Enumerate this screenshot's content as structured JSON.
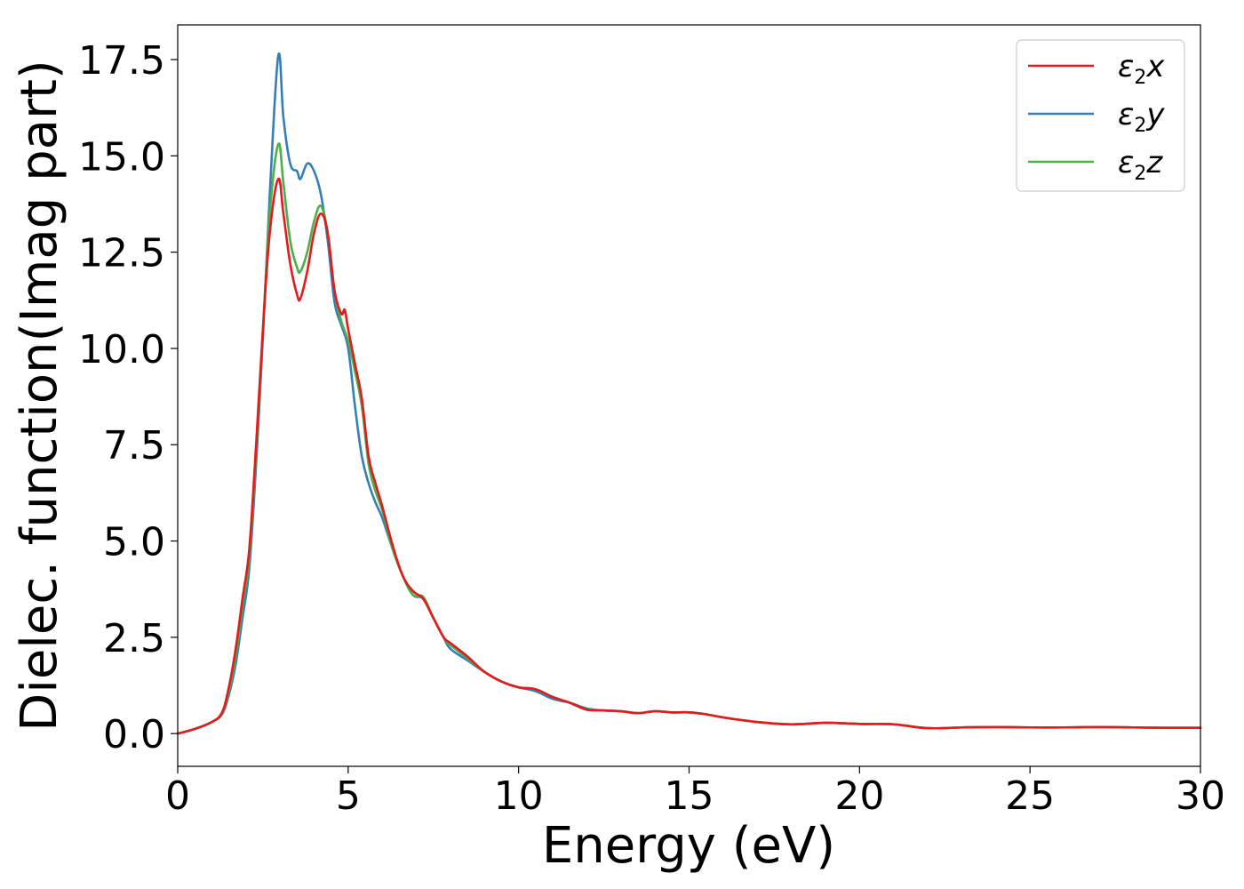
{
  "chart_data": {
    "type": "line",
    "xlabel": "Energy (eV)",
    "ylabel": "Dielec. function(Imag part)",
    "xlim": [
      0,
      30
    ],
    "ylim": [
      -0.85,
      18.4
    ],
    "xticks": [
      0,
      5,
      10,
      15,
      20,
      25,
      30
    ],
    "xtick_labels": [
      "0",
      "5",
      "10",
      "15",
      "20",
      "25",
      "30"
    ],
    "yticks": [
      0.0,
      2.5,
      5.0,
      7.5,
      10.0,
      12.5,
      15.0,
      17.5
    ],
    "ytick_labels": [
      "0.0",
      "2.5",
      "5.0",
      "7.5",
      "10.0",
      "12.5",
      "15.0",
      "17.5"
    ],
    "grid": false,
    "legend_position": "top-right",
    "series": [
      {
        "name": "ε2x",
        "legend_base": "ε",
        "legend_sub": "2",
        "legend_suffix": "x",
        "color": "#e41a1c",
        "x": [
          0,
          0.5,
          1.0,
          1.3,
          1.5,
          1.7,
          1.9,
          2.1,
          2.3,
          2.5,
          2.7,
          2.95,
          3.1,
          3.3,
          3.5,
          3.6,
          3.8,
          4.0,
          4.2,
          4.4,
          4.6,
          4.8,
          4.9,
          5.0,
          5.2,
          5.4,
          5.6,
          5.8,
          6.0,
          6.3,
          6.6,
          6.9,
          7.2,
          7.5,
          7.8,
          8.0,
          8.5,
          9.0,
          9.5,
          10.0,
          10.5,
          11.0,
          11.5,
          12.0,
          12.5,
          13.0,
          13.5,
          14.0,
          14.5,
          15.0,
          15.5,
          16.0,
          17.0,
          18.0,
          19.0,
          20.0,
          21.0,
          22.0,
          23.0,
          24.0,
          25.0,
          26.0,
          27.0,
          28.0,
          29.0,
          30.0
        ],
        "y": [
          0.0,
          0.12,
          0.3,
          0.55,
          1.2,
          2.2,
          3.5,
          4.8,
          7.5,
          10.5,
          13.0,
          14.4,
          13.5,
          12.2,
          11.4,
          11.3,
          12.0,
          13.0,
          13.5,
          13.0,
          11.5,
          10.9,
          11.0,
          10.5,
          9.6,
          8.7,
          7.2,
          6.5,
          5.9,
          4.9,
          4.1,
          3.7,
          3.5,
          3.0,
          2.5,
          2.35,
          2.0,
          1.6,
          1.35,
          1.2,
          1.15,
          0.95,
          0.8,
          0.62,
          0.6,
          0.58,
          0.53,
          0.58,
          0.55,
          0.55,
          0.5,
          0.42,
          0.3,
          0.24,
          0.28,
          0.25,
          0.24,
          0.14,
          0.16,
          0.17,
          0.16,
          0.16,
          0.17,
          0.16,
          0.15,
          0.15
        ]
      },
      {
        "name": "ε2y",
        "legend_base": "ε",
        "legend_sub": "2",
        "legend_suffix": "y",
        "color": "#377eb8",
        "x": [
          0,
          0.5,
          1.0,
          1.3,
          1.5,
          1.7,
          1.9,
          2.1,
          2.3,
          2.5,
          2.7,
          2.95,
          3.1,
          3.3,
          3.5,
          3.6,
          3.8,
          4.0,
          4.2,
          4.4,
          4.6,
          4.8,
          5.0,
          5.2,
          5.4,
          5.6,
          5.8,
          6.0,
          6.3,
          6.6,
          6.9,
          7.2,
          7.5,
          7.8,
          8.0,
          8.5,
          9.0,
          9.5,
          10.0,
          10.5,
          11.0,
          11.5,
          12.0,
          12.5,
          13.0,
          13.5,
          14.0,
          14.5,
          15.0,
          15.5,
          16.0,
          17.0,
          18.0,
          19.0,
          20.0,
          21.0,
          22.0,
          23.0,
          24.0,
          25.0,
          26.0,
          27.0,
          28.0,
          29.0,
          30.0
        ],
        "y": [
          0.0,
          0.12,
          0.3,
          0.5,
          1.0,
          1.8,
          3.0,
          4.3,
          7.0,
          10.3,
          14.0,
          17.6,
          16.0,
          14.8,
          14.6,
          14.4,
          14.8,
          14.6,
          14.0,
          12.8,
          11.2,
          10.6,
          10.0,
          8.5,
          7.2,
          6.5,
          6.0,
          5.6,
          4.8,
          4.1,
          3.6,
          3.5,
          3.0,
          2.5,
          2.2,
          1.9,
          1.6,
          1.35,
          1.2,
          1.1,
          0.9,
          0.8,
          0.65,
          0.6,
          0.58,
          0.53,
          0.58,
          0.55,
          0.55,
          0.5,
          0.42,
          0.3,
          0.24,
          0.28,
          0.25,
          0.24,
          0.14,
          0.16,
          0.17,
          0.16,
          0.16,
          0.17,
          0.16,
          0.15,
          0.15
        ]
      },
      {
        "name": "ε2z",
        "legend_base": "ε",
        "legend_sub": "2",
        "legend_suffix": "z",
        "color": "#4daf4a",
        "x": [
          0,
          0.5,
          1.0,
          1.3,
          1.5,
          1.7,
          1.9,
          2.1,
          2.3,
          2.5,
          2.7,
          2.95,
          3.1,
          3.3,
          3.5,
          3.6,
          3.8,
          4.0,
          4.2,
          4.4,
          4.6,
          4.8,
          5.0,
          5.2,
          5.4,
          5.6,
          5.8,
          6.0,
          6.3,
          6.6,
          6.9,
          7.2,
          7.5,
          7.8,
          8.0,
          8.5,
          9.0,
          9.5,
          10.0,
          10.5,
          11.0,
          11.5,
          12.0,
          12.5,
          13.0,
          13.5,
          14.0,
          14.5,
          15.0,
          15.5,
          16.0,
          17.0,
          18.0,
          19.0,
          20.0,
          21.0,
          22.0,
          23.0,
          24.0,
          25.0,
          26.0,
          27.0,
          28.0,
          29.0,
          30.0
        ],
        "y": [
          0.0,
          0.12,
          0.3,
          0.52,
          1.1,
          2.0,
          3.3,
          4.6,
          7.3,
          10.5,
          13.5,
          15.3,
          14.3,
          12.8,
          12.1,
          12.0,
          12.5,
          13.3,
          13.7,
          13.0,
          11.5,
          10.7,
          10.2,
          9.4,
          8.5,
          7.0,
          6.3,
          5.8,
          4.8,
          4.1,
          3.6,
          3.55,
          3.0,
          2.5,
          2.3,
          1.95,
          1.6,
          1.35,
          1.2,
          1.15,
          0.95,
          0.8,
          0.62,
          0.6,
          0.58,
          0.53,
          0.58,
          0.55,
          0.55,
          0.5,
          0.42,
          0.3,
          0.24,
          0.28,
          0.25,
          0.24,
          0.14,
          0.16,
          0.17,
          0.16,
          0.16,
          0.17,
          0.16,
          0.15,
          0.15
        ]
      }
    ]
  }
}
